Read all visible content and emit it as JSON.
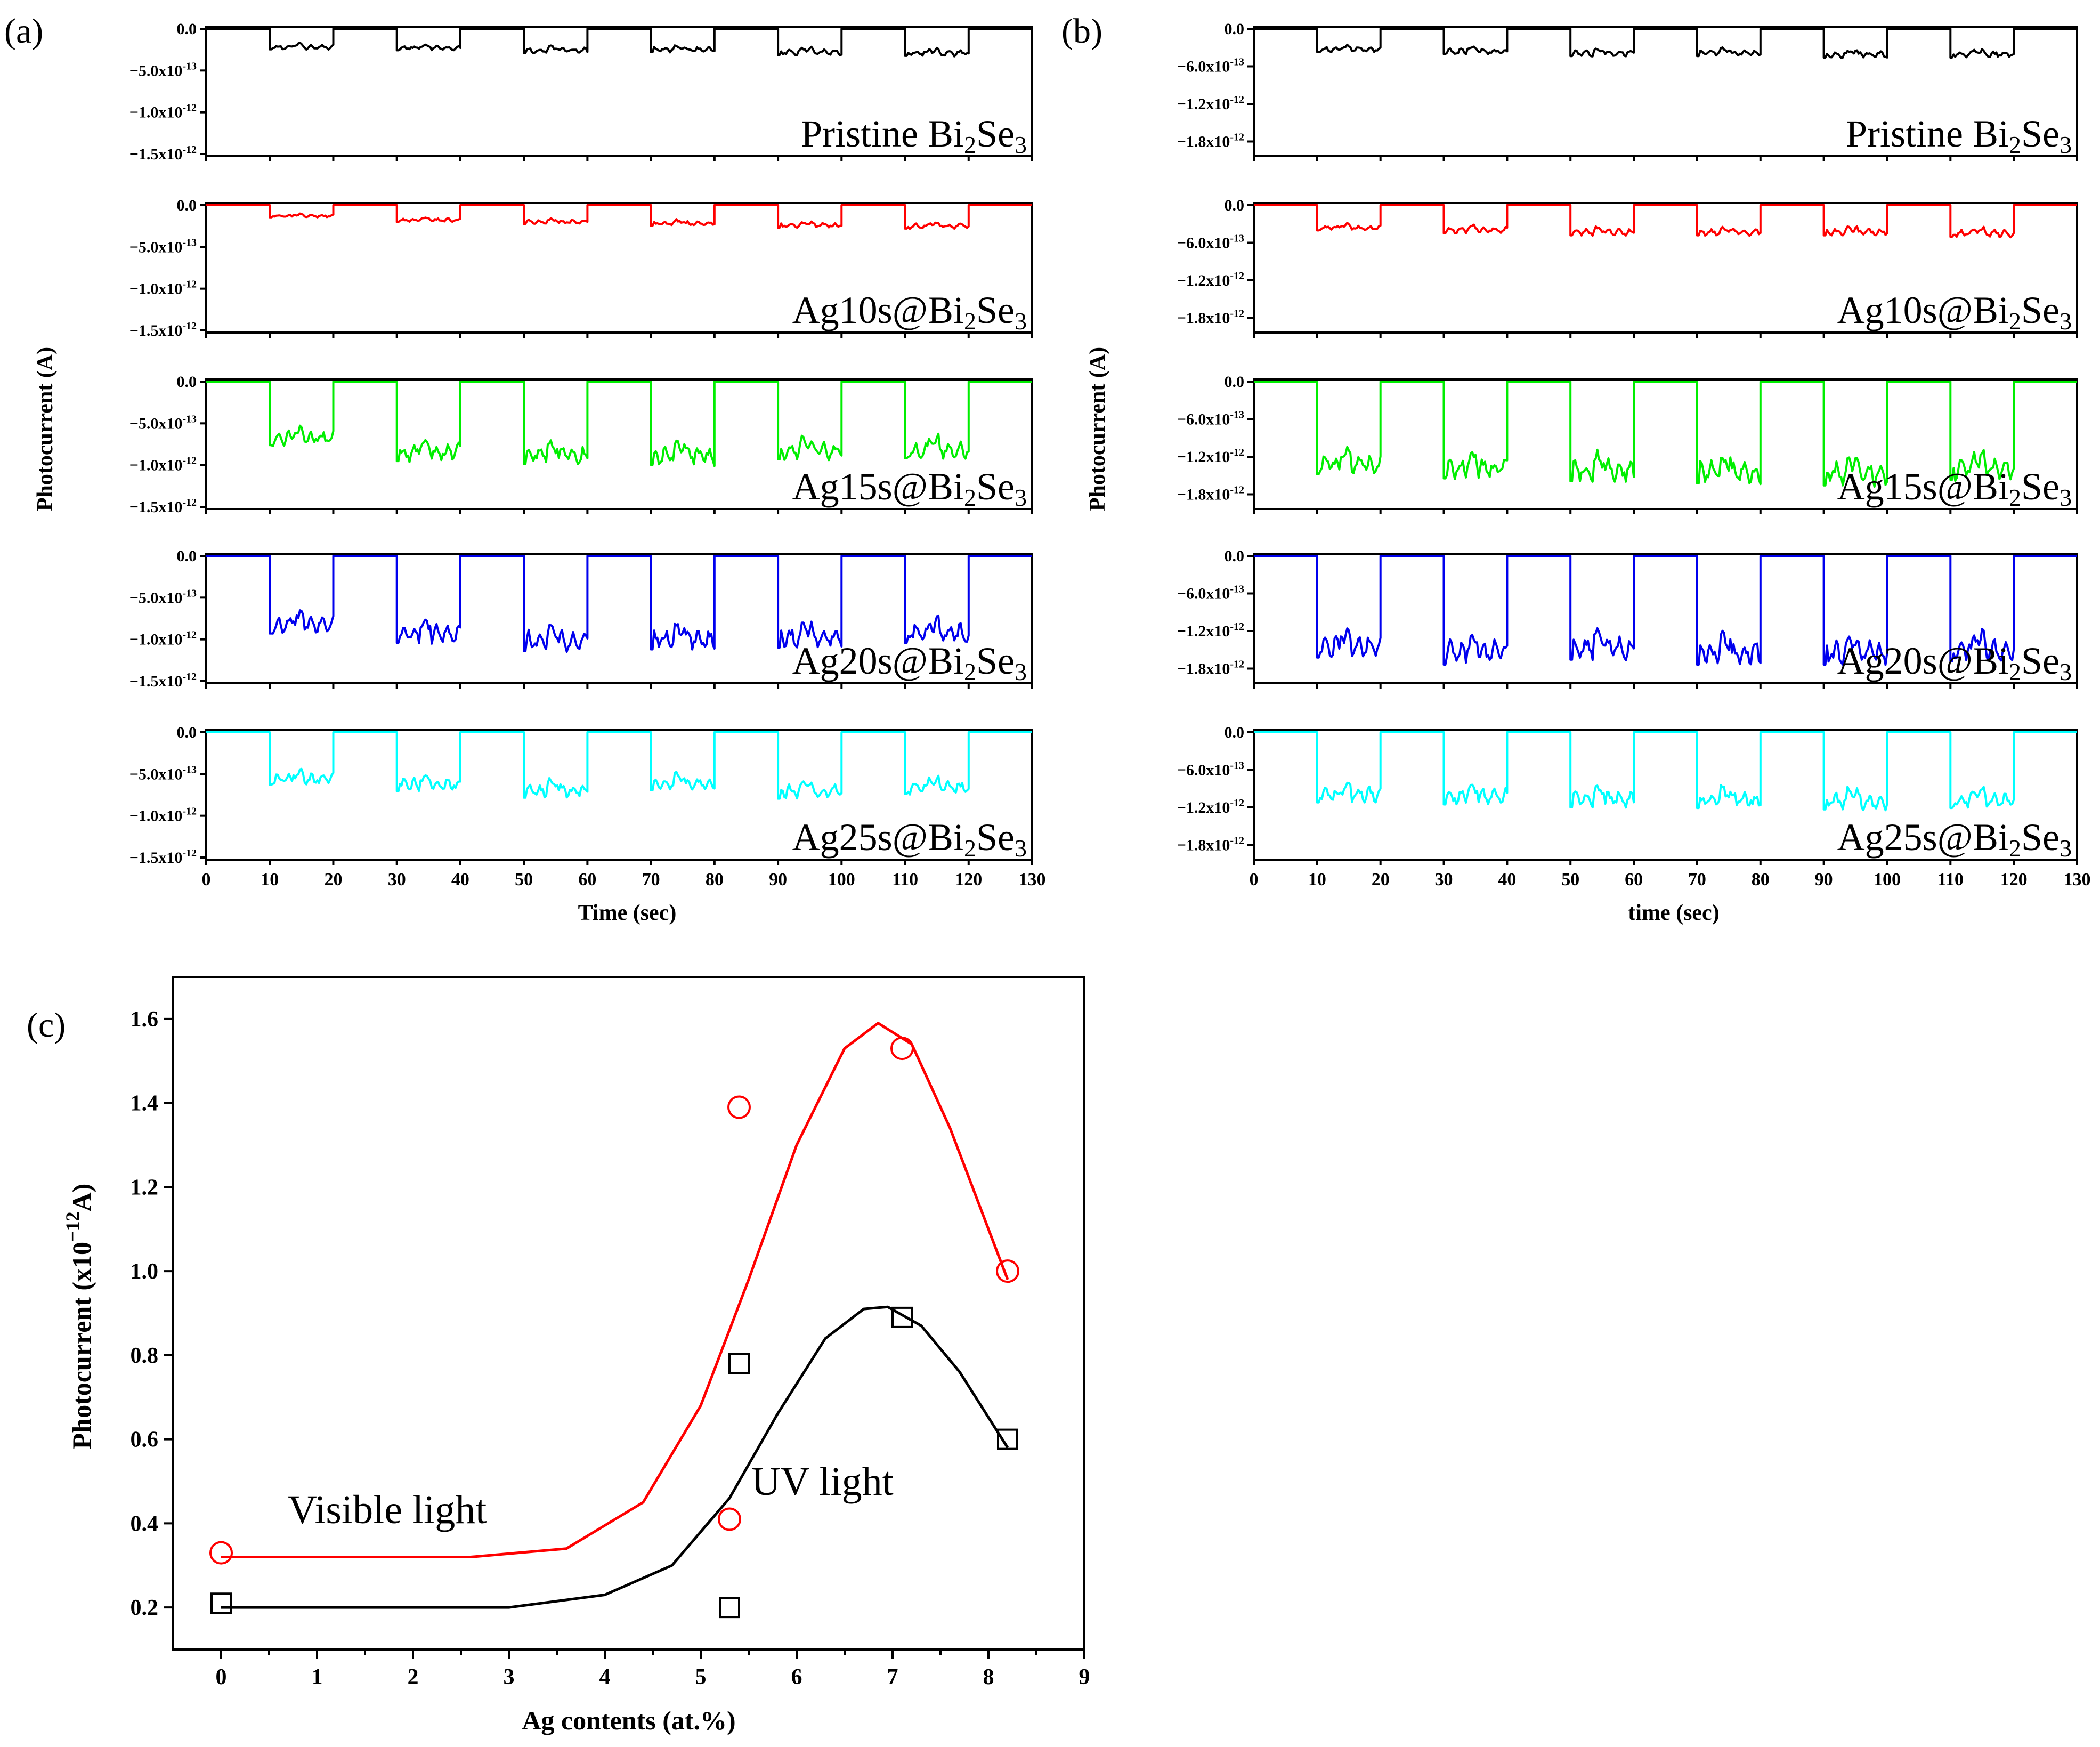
{
  "figure": {
    "panel_letters": {
      "a": "(a)",
      "b": "(b)",
      "c": "(c)"
    }
  },
  "chart_data": [
    {
      "id": "a",
      "type": "line",
      "title": "(a)",
      "xlabel": "Time (sec)",
      "ylabel": "Photocurrent (A)",
      "xlim": [
        0,
        130
      ],
      "ylim": [
        -1.5e-12,
        0
      ],
      "xticks": [
        "0",
        "10",
        "20",
        "30",
        "40",
        "50",
        "60",
        "70",
        "80",
        "90",
        "100",
        "110",
        "120",
        "130"
      ],
      "yticks": [
        {
          "value": 0,
          "mantissa": "0.0",
          "exp": ""
        },
        {
          "value": -5e-13,
          "mantissa": "−5.0x10",
          "exp": "-13"
        },
        {
          "value": -1e-12,
          "mantissa": "−1.0x10",
          "exp": "-12"
        },
        {
          "value": -1.5e-12,
          "mantissa": "−1.5x10",
          "exp": "-12"
        }
      ],
      "on_intervals": [
        [
          10,
          20
        ],
        [
          30,
          40
        ],
        [
          50,
          60
        ],
        [
          70,
          80
        ],
        [
          90,
          100
        ],
        [
          110,
          120
        ]
      ],
      "series": [
        {
          "label_main": "Pristine Bi",
          "sub1": "2",
          "mid": "Se",
          "sub2": "3",
          "color": "#000000",
          "on_values": [
            -2.2e-13,
            -2.3e-13,
            -2.6e-13,
            -2.5e-13,
            -2.8e-13,
            -2.9e-13
          ]
        },
        {
          "label_main": "Ag10s@Bi",
          "sub1": "2",
          "mid": "Se",
          "sub2": "3",
          "color": "#ff0000",
          "on_values": [
            -1.3e-13,
            -1.8e-13,
            -2e-13,
            -2.2e-13,
            -2.4e-13,
            -2.5e-13
          ]
        },
        {
          "label_main": "Ag15s@Bi",
          "sub1": "2",
          "mid": "Se",
          "sub2": "3",
          "color": "#00ee00",
          "on_values": [
            -6.8e-13,
            -8.5e-13,
            -8.8e-13,
            -8.9e-13,
            -8.3e-13,
            -8.2e-13
          ]
        },
        {
          "label_main": "Ag20s@Bi",
          "sub1": "2",
          "mid": "Se",
          "sub2": "3",
          "color": "#0000ee",
          "on_values": [
            -8.3e-13,
            -9.3e-13,
            -1.02e-12,
            -1e-12,
            -9.8e-13,
            -9.3e-13
          ]
        },
        {
          "label_main": "Ag25s@Bi",
          "sub1": "2",
          "mid": "Se",
          "sub2": "3",
          "color": "#00ffff",
          "on_values": [
            -5.6e-13,
            -6.3e-13,
            -7e-13,
            -6.2e-13,
            -7.1e-13,
            -6.6e-13
          ]
        }
      ]
    },
    {
      "id": "b",
      "type": "line",
      "title": "(b)",
      "xlabel": "time (sec)",
      "ylabel": "Photocurrent (A)",
      "xlim": [
        0,
        130
      ],
      "ylim": [
        -2e-12,
        0
      ],
      "xticks": [
        "0",
        "10",
        "20",
        "30",
        "40",
        "50",
        "60",
        "70",
        "80",
        "90",
        "100",
        "110",
        "120",
        "130"
      ],
      "yticks": [
        {
          "value": 0,
          "mantissa": "0.0",
          "exp": ""
        },
        {
          "value": -6e-13,
          "mantissa": "−6.0x10",
          "exp": "-13"
        },
        {
          "value": -1.2e-12,
          "mantissa": "−1.2x10",
          "exp": "-12"
        },
        {
          "value": -1.8e-12,
          "mantissa": "−1.8x10",
          "exp": "-12"
        }
      ],
      "on_intervals": [
        [
          10,
          20
        ],
        [
          30,
          40
        ],
        [
          50,
          60
        ],
        [
          70,
          80
        ],
        [
          90,
          100
        ],
        [
          110,
          120
        ]
      ],
      "series": [
        {
          "label_main": "Pristine Bi",
          "sub1": "2",
          "mid": "Se",
          "sub2": "3",
          "color": "#000000",
          "on_values": [
            -3.3e-13,
            -3.6e-13,
            -3.9e-13,
            -3.9e-13,
            -4.1e-13,
            -4.1e-13
          ]
        },
        {
          "label_main": "Ag10s@Bi",
          "sub1": "2",
          "mid": "Se",
          "sub2": "3",
          "color": "#ff0000",
          "on_values": [
            -3.6e-13,
            -4e-13,
            -4.3e-13,
            -4.3e-13,
            -4.3e-13,
            -4.5e-13
          ]
        },
        {
          "label_main": "Ag15s@Bi",
          "sub1": "2",
          "mid": "Se",
          "sub2": "3",
          "color": "#00ee00",
          "on_values": [
            -1.32e-12,
            -1.38e-12,
            -1.42e-12,
            -1.45e-12,
            -1.48e-12,
            -1.4e-12
          ]
        },
        {
          "label_main": "Ag20s@Bi",
          "sub1": "2",
          "mid": "Se",
          "sub2": "3",
          "color": "#0000ee",
          "on_values": [
            -1.45e-12,
            -1.55e-12,
            -1.48e-12,
            -1.55e-12,
            -1.55e-12,
            -1.5e-12
          ]
        },
        {
          "label_main": "Ag25s@Bi",
          "sub1": "2",
          "mid": "Se",
          "sub2": "3",
          "color": "#00ffff",
          "on_values": [
            -1e-12,
            -1.03e-12,
            -1.07e-12,
            -1.08e-12,
            -1.1e-12,
            -1.08e-12
          ]
        }
      ]
    },
    {
      "id": "c",
      "type": "scatter",
      "title": "(c)",
      "xlabel": "Ag contents (at.%)",
      "ylabel_main": "Photocurrent (x10",
      "ylabel_exp": "−12",
      "ylabel_tail": "A)",
      "xlim": [
        -0.5,
        9
      ],
      "ylim": [
        0.1,
        1.7
      ],
      "xticks": [
        "0",
        "1",
        "2",
        "3",
        "4",
        "5",
        "6",
        "7",
        "8",
        "9"
      ],
      "yticks": [
        "0.2",
        "0.4",
        "0.6",
        "0.8",
        "1.0",
        "1.2",
        "1.4",
        "1.6"
      ],
      "annotations": {
        "visible": "Visible light",
        "uv": "UV light"
      },
      "series": [
        {
          "name": "Visible light",
          "marker": "circle",
          "color": "#ff0000",
          "x": [
            0,
            5.3,
            5.4,
            7.1,
            8.2
          ],
          "y": [
            0.33,
            0.41,
            1.39,
            1.53,
            1.0
          ],
          "fit_x": [
            0,
            2.6,
            3.6,
            4.4,
            5.0,
            5.5,
            6.0,
            6.5,
            6.85,
            7.2,
            7.6,
            8.0,
            8.2
          ],
          "fit_y": [
            0.32,
            0.32,
            0.34,
            0.45,
            0.68,
            0.98,
            1.3,
            1.53,
            1.59,
            1.54,
            1.34,
            1.1,
            0.98
          ]
        },
        {
          "name": "UV light",
          "marker": "square",
          "color": "#000000",
          "x": [
            0,
            5.3,
            5.4,
            7.1,
            8.2
          ],
          "y": [
            0.21,
            0.2,
            0.78,
            0.89,
            0.6
          ],
          "fit_x": [
            0,
            3.0,
            4.0,
            4.7,
            5.3,
            5.8,
            6.3,
            6.7,
            6.95,
            7.3,
            7.7,
            8.2
          ],
          "fit_y": [
            0.2,
            0.2,
            0.23,
            0.3,
            0.46,
            0.66,
            0.84,
            0.91,
            0.915,
            0.87,
            0.76,
            0.58
          ]
        }
      ]
    }
  ]
}
